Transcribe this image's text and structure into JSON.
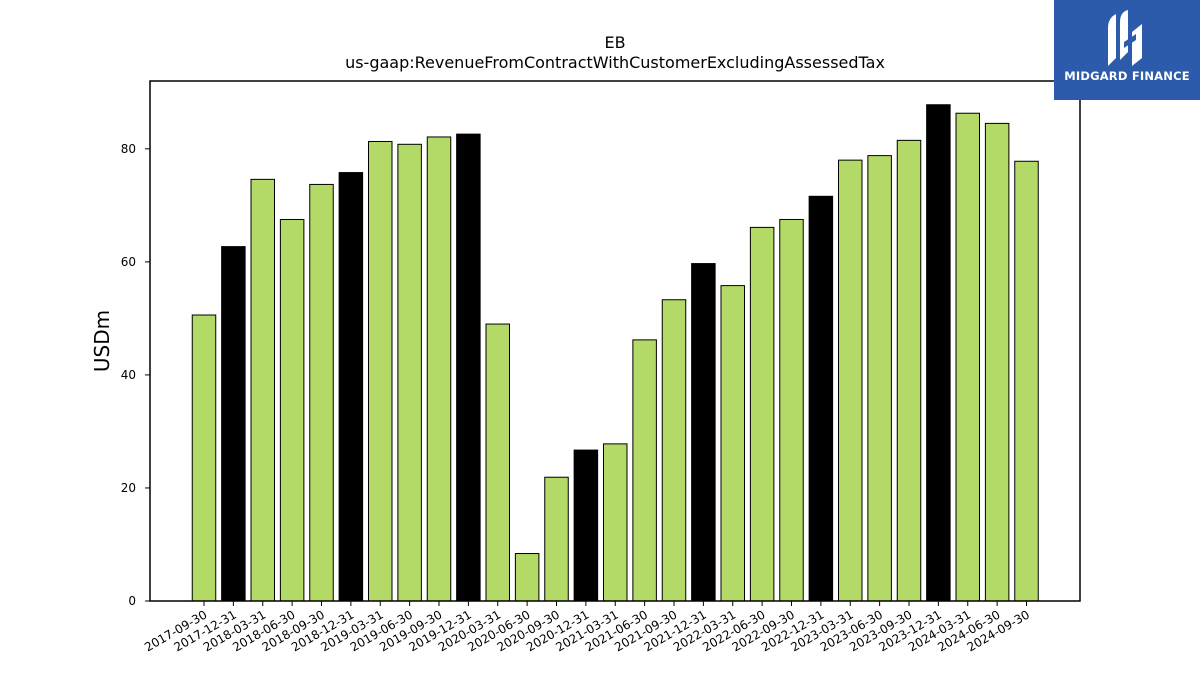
{
  "chart_data": {
    "type": "bar",
    "title": "EB",
    "subtitle": "us-gaap:RevenueFromContractWithCustomerExcludingAssessedTax",
    "xlabel": "",
    "ylabel": "USDm",
    "ylim": [
      0,
      92
    ],
    "yticks": [
      0,
      20,
      40,
      60,
      80
    ],
    "grid": false,
    "categories": [
      "2017-09-30",
      "2017-12-31",
      "2018-03-31",
      "2018-06-30",
      "2018-09-30",
      "2018-12-31",
      "2019-03-31",
      "2019-06-30",
      "2019-09-30",
      "2019-12-31",
      "2020-03-31",
      "2020-06-30",
      "2020-09-30",
      "2020-12-31",
      "2021-03-31",
      "2021-06-30",
      "2021-09-30",
      "2021-12-31",
      "2022-03-31",
      "2022-06-30",
      "2022-09-30",
      "2022-12-31",
      "2023-03-31",
      "2023-06-30",
      "2023-09-30",
      "2023-12-31",
      "2024-03-31",
      "2024-06-30",
      "2024-09-30"
    ],
    "values": [
      50.6,
      62.7,
      74.6,
      67.5,
      73.7,
      75.8,
      81.3,
      80.8,
      82.1,
      82.6,
      49.0,
      8.4,
      21.9,
      26.7,
      27.8,
      46.2,
      53.3,
      59.7,
      55.8,
      66.1,
      67.5,
      71.6,
      78.0,
      78.8,
      81.5,
      87.8,
      86.3,
      84.5,
      77.8
    ],
    "colors": {
      "q4": "#000000",
      "other": "#b3d966",
      "edge": "#000000"
    }
  },
  "logo": {
    "text": "MIDGARD FINANCE",
    "background": "#2d5bab"
  }
}
